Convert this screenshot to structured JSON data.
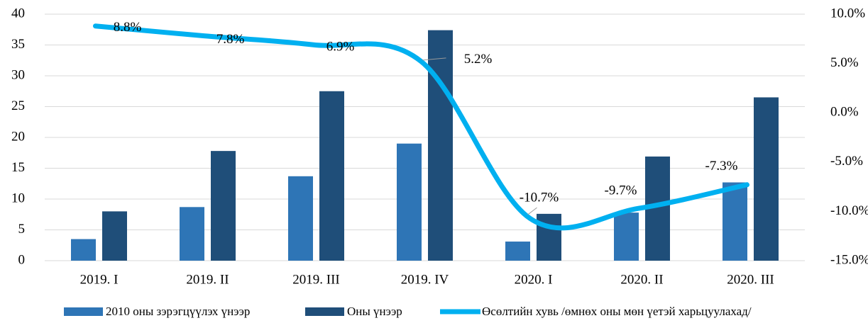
{
  "chart_data": {
    "type": "bar+line",
    "categories": [
      "2019. I",
      "2019. II",
      "2019. III",
      "2019. IV",
      "2020. I",
      "2020. II",
      "2020. III"
    ],
    "series": [
      {
        "name": "2010 оны зэрэгцүүлэх үнээр",
        "type": "bar",
        "color": "#2e75b6",
        "values": [
          3.5,
          8.7,
          13.7,
          19.0,
          3.1,
          7.8,
          12.7
        ]
      },
      {
        "name": "Оны үнээр",
        "type": "bar",
        "color": "#1f4e79",
        "values": [
          8.0,
          17.8,
          27.5,
          37.4,
          7.6,
          16.9,
          26.5
        ]
      },
      {
        "name": "Өсөлтийн хувь /өмнөх оны мөн үетэй харьцуулахад/",
        "type": "line",
        "axis": "y2",
        "color": "#00b0f0",
        "values": [
          8.8,
          7.8,
          6.9,
          5.2,
          -10.7,
          -9.7,
          -7.3
        ],
        "value_labels": [
          "8.8%",
          "7.8%",
          "6.9%",
          "5.2%",
          "-10.7%",
          "-9.7%",
          "-7.3%"
        ]
      }
    ],
    "ylim": [
      0,
      40
    ],
    "yticks": [
      0,
      5,
      10,
      15,
      20,
      25,
      30,
      35,
      40
    ],
    "y2lim": [
      -15,
      10
    ],
    "y2ticks": [
      {
        "value": -15,
        "label": "-15.0%"
      },
      {
        "value": -10,
        "label": "-10.0%"
      },
      {
        "value": -5,
        "label": "-5.0%"
      },
      {
        "value": 0,
        "label": "0.0%"
      },
      {
        "value": 5,
        "label": "5.0%"
      },
      {
        "value": 10,
        "label": "10.0%"
      }
    ],
    "grid": true,
    "legend": "bottom"
  }
}
